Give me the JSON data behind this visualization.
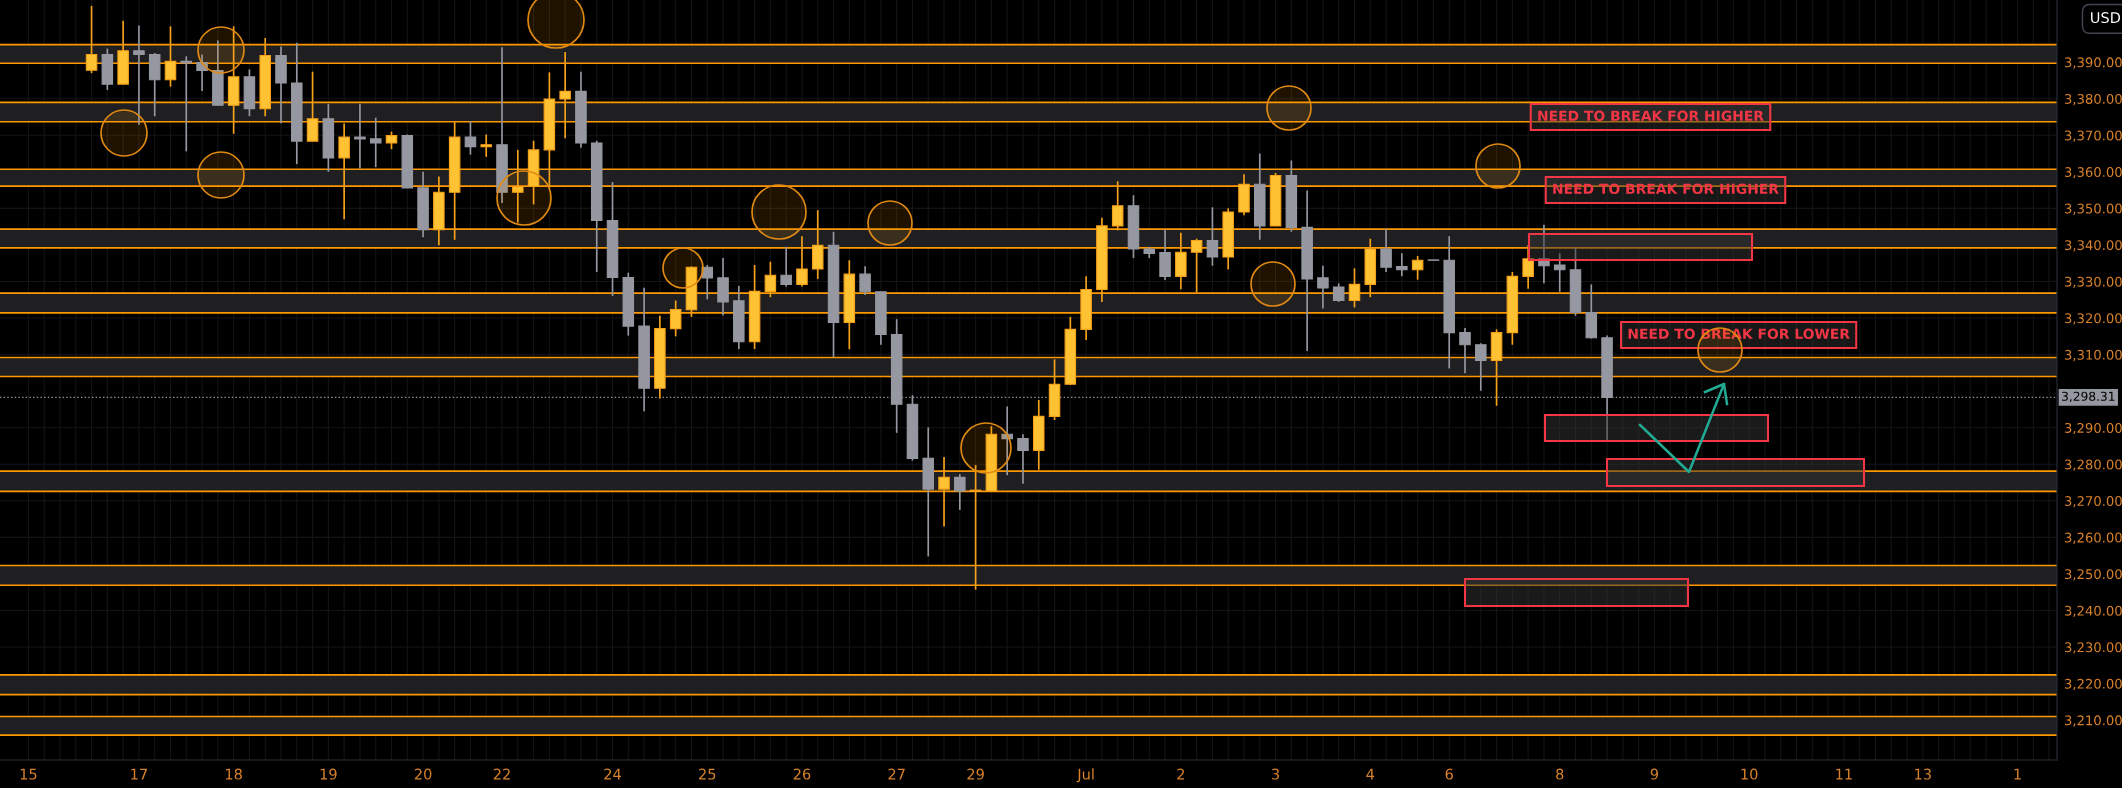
{
  "chart_data": {
    "type": "candlestick",
    "categories": [
      "15",
      null,
      null,
      null,
      null,
      null,
      null,
      "17",
      null,
      null,
      null,
      null,
      null,
      "18",
      null,
      null,
      null,
      null,
      null,
      "19",
      null,
      null,
      null,
      null,
      null,
      "20",
      null,
      null,
      null,
      null,
      "22",
      null,
      null,
      null,
      null,
      null,
      null,
      "24",
      null,
      null,
      null,
      null,
      null,
      "25",
      null,
      null,
      null,
      null,
      null,
      "26",
      null,
      null,
      null,
      null,
      null,
      "27",
      null,
      null,
      null,
      null,
      "29",
      null,
      null,
      null,
      null,
      null,
      null,
      "Jul",
      null,
      null,
      null,
      null,
      null,
      "2",
      null,
      null,
      null,
      null,
      null,
      "3",
      null,
      null,
      null,
      null,
      null,
      "4",
      null,
      null,
      null,
      null,
      "6",
      null,
      null,
      null,
      null,
      null,
      null,
      "8",
      null,
      null,
      null,
      null,
      null,
      "9",
      null,
      null,
      null,
      null,
      null,
      "10",
      null,
      null,
      null,
      null,
      null,
      "11",
      null,
      null,
      null,
      null,
      "13",
      null,
      null,
      null,
      null,
      null,
      "1",
      null,
      null
    ],
    "ohlc": [
      null,
      null,
      null,
      null,
      [
        3387.8,
        3405.4,
        3387.0,
        3392.1
      ],
      [
        3392.1,
        3393.7,
        3382.4,
        3384.0
      ],
      [
        3384.0,
        3401.3,
        3383.8,
        3393.1
      ],
      [
        3393.1,
        3400.0,
        3372.9,
        3392.1
      ],
      [
        3392.1,
        3392.5,
        3375.2,
        3385.2
      ],
      [
        3385.2,
        3399.8,
        3383.3,
        3390.2
      ],
      [
        3390.2,
        3391.6,
        3365.6,
        3389.8
      ],
      [
        3389.9,
        3392.1,
        3382.1,
        3387.7
      ],
      [
        3387.7,
        3395.9,
        3378.2,
        3378.2
      ],
      [
        3378.2,
        3399.8,
        3370.4,
        3386.0
      ],
      [
        3386.0,
        3388.0,
        3375.2,
        3377.3
      ],
      [
        3377.3,
        3396.6,
        3375.2,
        3391.8
      ],
      [
        3391.8,
        3394.3,
        3373.3,
        3384.3
      ],
      [
        3384.3,
        3395.3,
        3362.1,
        3368.4
      ],
      [
        3368.4,
        3387.4,
        3368.4,
        3374.5
      ],
      [
        3374.5,
        3378.6,
        3360.0,
        3363.8
      ],
      [
        3363.8,
        3373.2,
        3347.0,
        3369.5
      ],
      [
        3369.5,
        3378.6,
        3360.9,
        3369.0
      ],
      [
        3369.0,
        3374.8,
        3361.3,
        3367.9
      ],
      [
        3367.9,
        3371.0,
        3366.2,
        3369.9
      ],
      [
        3369.9,
        3370.2,
        3355.6,
        3355.6
      ],
      [
        3355.6,
        3360.0,
        3342.1,
        3344.2
      ],
      [
        3344.2,
        3358.7,
        3339.9,
        3354.4
      ],
      [
        3354.4,
        3373.6,
        3341.4,
        3369.5
      ],
      [
        3369.5,
        3373.9,
        3364.7,
        3366.9
      ],
      [
        3366.9,
        3370.2,
        3364.1,
        3367.4
      ],
      [
        3367.4,
        3394.1,
        3351.5,
        3354.4
      ],
      [
        3354.4,
        3366.0,
        3346.1,
        3356.0
      ],
      [
        3356.0,
        3368.5,
        3351.1,
        3366.0
      ],
      [
        3366.0,
        3387.2,
        3355.6,
        3379.9
      ],
      [
        3379.9,
        3392.8,
        3369.2,
        3382.0
      ],
      [
        3382.0,
        3387.4,
        3366.6,
        3367.9
      ],
      [
        3367.9,
        3368.5,
        3332.6,
        3346.7
      ],
      [
        3346.7,
        3357.2,
        3326.0,
        3331.1
      ],
      [
        3331.1,
        3332.4,
        3315.2,
        3317.8
      ],
      [
        3317.8,
        3328.3,
        3294.5,
        3300.8
      ],
      [
        3300.8,
        3320.6,
        3298.0,
        3317.1
      ],
      [
        3317.1,
        3324.8,
        3315.0,
        3322.3
      ],
      [
        3322.3,
        3334.1,
        3320.3,
        3333.9
      ],
      [
        3333.9,
        3334.5,
        3325.1,
        3331.0
      ],
      [
        3331.0,
        3336.4,
        3320.7,
        3324.4
      ],
      [
        3324.7,
        3328.8,
        3311.5,
        3313.5
      ],
      [
        3313.5,
        3334.5,
        3311.5,
        3327.3
      ],
      [
        3327.3,
        3335.4,
        3325.7,
        3331.7
      ],
      [
        3331.7,
        3339.5,
        3328.6,
        3329.2
      ],
      [
        3329.2,
        3342.4,
        3328.6,
        3333.4
      ],
      [
        3333.4,
        3349.5,
        3330.7,
        3339.9
      ],
      [
        3339.9,
        3343.6,
        3309.3,
        3318.8
      ],
      [
        3318.8,
        3335.8,
        3311.5,
        3332.0
      ],
      [
        3332.0,
        3334.2,
        3326.3,
        3327.2
      ],
      [
        3327.2,
        3327.2,
        3312.7,
        3315.5
      ],
      [
        3315.5,
        3319.7,
        3288.6,
        3296.4
      ],
      [
        3296.4,
        3298.9,
        3281.0,
        3281.6
      ],
      [
        3281.6,
        3290.1,
        3254.8,
        3273.2
      ],
      [
        3273.2,
        3282.0,
        3263.0,
        3276.4
      ],
      [
        3276.4,
        3277.3,
        3267.5,
        3272.7
      ],
      [
        3272.6,
        3279.8,
        3245.7,
        3272.9
      ],
      [
        3272.7,
        3290.4,
        3272.7,
        3288.2
      ],
      [
        3288.2,
        3295.8,
        3277.0,
        3287.0
      ],
      [
        3287.0,
        3288.2,
        3274.7,
        3283.8
      ],
      [
        3283.8,
        3297.6,
        3278.5,
        3293.1
      ],
      [
        3293.1,
        3308.7,
        3292.1,
        3301.9
      ],
      [
        3301.9,
        3320.3,
        3301.7,
        3316.9
      ],
      [
        3316.9,
        3331.4,
        3314.0,
        3327.8
      ],
      [
        3327.8,
        3347.4,
        3324.4,
        3345.2
      ],
      [
        3345.2,
        3357.4,
        3344.0,
        3350.7
      ],
      [
        3350.7,
        3353.6,
        3336.4,
        3338.9
      ],
      [
        3338.9,
        3339.5,
        3336.4,
        3337.7
      ],
      [
        3337.9,
        3344.2,
        3330.4,
        3331.4
      ],
      [
        3331.4,
        3343.3,
        3327.9,
        3338.0
      ],
      [
        3338.0,
        3341.7,
        3327.0,
        3341.2
      ],
      [
        3341.2,
        3350.3,
        3334.3,
        3336.7
      ],
      [
        3336.7,
        3350.0,
        3333.3,
        3349.0
      ],
      [
        3349.0,
        3359.3,
        3348.1,
        3356.6
      ],
      [
        3356.6,
        3365.0,
        3341.4,
        3345.2
      ],
      [
        3345.2,
        3359.7,
        3345.2,
        3359.0
      ],
      [
        3359.0,
        3363.1,
        3343.6,
        3344.8
      ],
      [
        3344.8,
        3354.9,
        3311.0,
        3330.7
      ],
      [
        3331.0,
        3334.3,
        3322.6,
        3328.2
      ],
      [
        3328.5,
        3329.5,
        3324.4,
        3324.8
      ],
      [
        3324.8,
        3333.6,
        3322.9,
        3329.2
      ],
      [
        3329.2,
        3341.7,
        3325.7,
        3338.9
      ],
      [
        3338.9,
        3344.4,
        3332.6,
        3333.9
      ],
      [
        3334.1,
        3337.7,
        3331.4,
        3333.2
      ],
      [
        3333.2,
        3337.0,
        3330.5,
        3335.8
      ],
      [
        3335.9,
        3335.9,
        3335.8,
        3335.8
      ],
      [
        3335.8,
        3342.4,
        3306.2,
        3316.0
      ],
      [
        3316.0,
        3317.3,
        3304.9,
        3312.7
      ],
      [
        3312.7,
        3313.1,
        3300.1,
        3308.4
      ],
      [
        3308.4,
        3316.9,
        3296.0,
        3316.0
      ],
      [
        3316.0,
        3332.6,
        3312.7,
        3331.4
      ],
      [
        3331.4,
        3339.9,
        3328.0,
        3336.2
      ],
      [
        3336.2,
        3345.5,
        3329.5,
        3334.3
      ],
      [
        3334.5,
        3337.7,
        3327.2,
        3333.2
      ],
      [
        3333.2,
        3339.2,
        3320.6,
        3321.5
      ],
      [
        3321.5,
        3329.2,
        3314.4,
        3314.6
      ],
      [
        3314.6,
        3315.2,
        3286.6,
        3298.31
      ],
      null,
      null,
      null,
      null,
      null,
      null,
      null,
      null,
      null,
      null,
      null,
      null,
      null,
      null,
      null,
      null,
      null,
      null,
      null,
      null,
      null,
      null,
      null,
      null,
      null,
      null,
      null,
      null
    ],
    "ylim": [
      3199.1,
      3407.0
    ],
    "yticks": [
      {
        "value": 3210,
        "label": "3,210.00"
      },
      {
        "value": 3220,
        "label": "3,220.00"
      },
      {
        "value": 3230,
        "label": "3,230.00"
      },
      {
        "value": 3240,
        "label": "3,240.00"
      },
      {
        "value": 3250,
        "label": "3,250.00"
      },
      {
        "value": 3260,
        "label": "3,260.00"
      },
      {
        "value": 3270,
        "label": "3,270.00"
      },
      {
        "value": 3280,
        "label": "3,280.00"
      },
      {
        "value": 3290,
        "label": "3,290.00"
      },
      {
        "value": 3310,
        "label": "3,310.00"
      },
      {
        "value": 3320,
        "label": "3,320.00"
      },
      {
        "value": 3330,
        "label": "3,330.00"
      },
      {
        "value": 3340,
        "label": "3,340.00"
      },
      {
        "value": 3350,
        "label": "3,350.00"
      },
      {
        "value": 3360,
        "label": "3,360.00"
      },
      {
        "value": 3370,
        "label": "3,370.00"
      },
      {
        "value": 3380,
        "label": "3,380.00"
      },
      {
        "value": 3390,
        "label": "3,390.00"
      }
    ],
    "ref_lines": [
      {
        "axis": "y",
        "value": 3298.31,
        "label": "3,298.31",
        "color": "#9598a1",
        "line_style": "dotted"
      }
    ],
    "bands": [
      {
        "axis": "y",
        "from": 3389.7,
        "to": 3394.8,
        "color": "#1f1f21"
      },
      {
        "axis": "y",
        "from": 3373.7,
        "to": 3379.0,
        "color": "#1f1f21"
      },
      {
        "axis": "y",
        "from": 3356.1,
        "to": 3360.7,
        "color": "#1f1f21"
      },
      {
        "axis": "y",
        "from": 3339.2,
        "to": 3344.3,
        "color": "#1f1f21"
      },
      {
        "axis": "y",
        "from": 3321.4,
        "to": 3326.8,
        "color": "#1f1f21"
      },
      {
        "axis": "y",
        "from": 3304.0,
        "to": 3309.2,
        "color": "#1f1f21"
      },
      {
        "axis": "y",
        "from": 3272.6,
        "to": 3278.1,
        "color": "#1f1f21"
      },
      {
        "axis": "y",
        "from": 3246.9,
        "to": 3252.3,
        "color": "#1f1f21"
      },
      {
        "axis": "y",
        "from": 3217.0,
        "to": 3222.4,
        "color": "#1f1f21"
      },
      {
        "axis": "y",
        "from": 3205.9,
        "to": 3211.0,
        "color": "#1f1f21"
      }
    ],
    "grid": true,
    "annotations": [
      "NEED TO BREAK FOR HIGHER",
      "NEED TO BREAK FOR HIGHER",
      "NEED TO BREAK FOR LOWER",
      "USD"
    ]
  }
}
